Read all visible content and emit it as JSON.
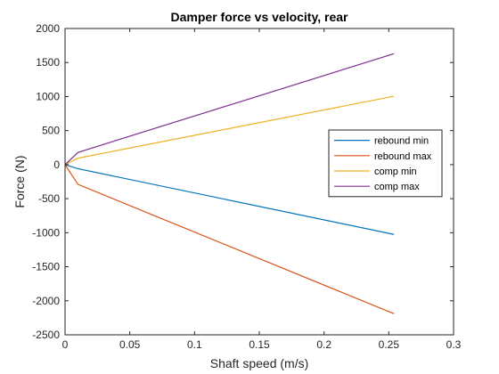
{
  "chart_data": {
    "type": "line",
    "title": "Damper force vs velocity, rear",
    "xlabel": "Shaft speed (m/s)",
    "ylabel": "Force (N)",
    "xlim": [
      0,
      0.3
    ],
    "ylim": [
      -2500,
      2000
    ],
    "xticks": [
      0,
      0.05,
      0.1,
      0.15,
      0.2,
      0.25,
      0.3
    ],
    "xtick_labels": [
      "0",
      "0.05",
      "0.1",
      "0.15",
      "0.2",
      "0.25",
      "0.3"
    ],
    "yticks": [
      -2500,
      -2000,
      -1500,
      -1000,
      -500,
      0,
      500,
      1000,
      1500,
      2000
    ],
    "ytick_labels": [
      "-2500",
      "-2000",
      "-1500",
      "-1000",
      "-500",
      "0",
      "500",
      "1000",
      "1500",
      "2000"
    ],
    "grid": false,
    "legend_position": "right",
    "series": [
      {
        "name": "rebound min",
        "color": "#0072BD",
        "x": [
          0,
          0.01,
          0.254
        ],
        "y": [
          0,
          -60,
          -1025
        ]
      },
      {
        "name": "rebound max",
        "color": "#D95319",
        "x": [
          0,
          0.01,
          0.254
        ],
        "y": [
          0,
          -290,
          -2190
        ]
      },
      {
        "name": "comp min",
        "color": "#EDB120",
        "x": [
          0,
          0.01,
          0.254
        ],
        "y": [
          0,
          95,
          1005
        ]
      },
      {
        "name": "comp max",
        "color": "#7E2F8E",
        "x": [
          0,
          0.01,
          0.254
        ],
        "y": [
          0,
          180,
          1630
        ]
      }
    ]
  }
}
